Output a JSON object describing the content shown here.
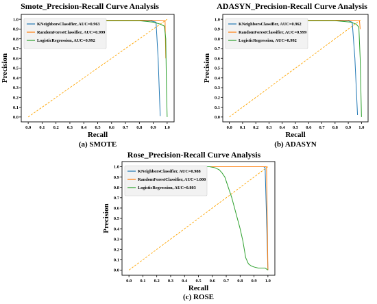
{
  "chart_data": [
    {
      "id": "smote",
      "type": "line",
      "title": "Smote_Precision-Recall Curve Analysis",
      "xlabel": "Recall",
      "ylabel": "Precision",
      "caption": "(a) SMOTE",
      "xlim": [
        0,
        1.0
      ],
      "ylim": [
        0,
        1.0
      ],
      "xticks": [
        "0.0",
        "0.1",
        "0.2",
        "0.3",
        "0.4",
        "0.5",
        "0.6",
        "0.7",
        "0.8",
        "0.9",
        "1.0"
      ],
      "yticks": [
        "0.0",
        "0.1",
        "0.2",
        "0.3",
        "0.4",
        "0.5",
        "0.6",
        "0.7",
        "0.8",
        "0.9",
        "1.0"
      ],
      "legend_position": "top-left",
      "grid": false,
      "series": [
        {
          "name": "KNeighborsClassifier, AUC=0.963",
          "color": "#1f77b4",
          "x": [
            0.5,
            0.7,
            0.88,
            0.92,
            0.935,
            0.95
          ],
          "y": [
            0.99,
            0.99,
            0.985,
            0.97,
            0.6,
            0.01
          ]
        },
        {
          "name": "RandomForestClassifier, AUC=0.999",
          "color": "#ff7f0e",
          "x": [
            0.5,
            0.8,
            0.95,
            0.985,
            0.99
          ],
          "y": [
            0.99,
            0.99,
            0.99,
            0.985,
            0.6
          ]
        },
        {
          "name": "LogisticRegression, AUC=0.992",
          "color": "#2ca02c",
          "x": [
            0.5,
            0.8,
            0.9,
            0.95,
            0.98,
            0.99,
            0.995,
            1.0
          ],
          "y": [
            0.985,
            0.985,
            0.97,
            0.95,
            0.93,
            0.8,
            0.3,
            0.0
          ]
        },
        {
          "name": "",
          "color": "#ffa500",
          "dashed": true,
          "x": [
            0.0,
            1.0
          ],
          "y": [
            0.0,
            1.0
          ]
        }
      ]
    },
    {
      "id": "adasyn",
      "type": "line",
      "title": "ADASYN_Precision-Recall Curve Analysis",
      "xlabel": "Recall",
      "ylabel": "Precision",
      "caption": "(b) ADASYN",
      "xlim": [
        0,
        1.0
      ],
      "ylim": [
        0,
        1.0
      ],
      "xticks": [
        "0.0",
        "0.1",
        "0.2",
        "0.3",
        "0.4",
        "0.5",
        "0.6",
        "0.7",
        "0.8",
        "0.9",
        "1.0"
      ],
      "yticks": [
        "0.0",
        "0.1",
        "0.2",
        "0.3",
        "0.4",
        "0.5",
        "0.6",
        "0.7",
        "0.8",
        "0.9",
        "1.0"
      ],
      "legend_position": "top-left",
      "grid": false,
      "series": [
        {
          "name": "KNeighborsClassifier, AUC=0.962",
          "color": "#1f77b4",
          "x": [
            0.5,
            0.7,
            0.9,
            0.93,
            0.95,
            0.97
          ],
          "y": [
            0.99,
            0.99,
            0.985,
            0.97,
            0.6,
            0.02
          ]
        },
        {
          "name": "RandomForestClassifier, AUC=0.999",
          "color": "#ff7f0e",
          "x": [
            0.5,
            0.8,
            0.95,
            0.985,
            0.99
          ],
          "y": [
            0.99,
            0.99,
            0.99,
            0.985,
            0.9
          ]
        },
        {
          "name": "LogisticRegression, AUC=0.992",
          "color": "#2ca02c",
          "x": [
            0.5,
            0.8,
            0.92,
            0.96,
            0.98,
            0.99,
            0.995,
            1.0
          ],
          "y": [
            0.985,
            0.985,
            0.97,
            0.95,
            0.92,
            0.6,
            0.3,
            0.0
          ]
        },
        {
          "name": "",
          "color": "#ffa500",
          "dashed": true,
          "x": [
            0.0,
            1.0
          ],
          "y": [
            0.0,
            1.0
          ]
        }
      ]
    },
    {
      "id": "rose",
      "type": "line",
      "title": "Rose_Precision-Recall Curve Analysis",
      "xlabel": "Recall",
      "ylabel": "Precision",
      "caption": "(c) ROSE",
      "xlim": [
        0,
        1.0
      ],
      "ylim": [
        0,
        1.0
      ],
      "xticks": [
        "0.0",
        "0.1",
        "0.2",
        "0.3",
        "0.4",
        "0.5",
        "0.6",
        "0.7",
        "0.8",
        "0.9",
        "1.0"
      ],
      "yticks": [
        "0.0",
        "0.1",
        "0.2",
        "0.3",
        "0.4",
        "0.5",
        "0.6",
        "0.7",
        "0.8",
        "0.9",
        "1.0"
      ],
      "legend_position": "top-left",
      "grid": false,
      "series": [
        {
          "name": "KNeighborsClassifier, AUC=0.988",
          "color": "#1f77b4",
          "x": [
            0.5,
            0.8,
            0.97,
            0.98,
            0.99,
            1.0
          ],
          "y": [
            1.0,
            1.0,
            1.0,
            0.99,
            0.5,
            0.0
          ]
        },
        {
          "name": "RandomForestClassifier, AUC=1.000",
          "color": "#ff7f0e",
          "x": [
            0.5,
            0.8,
            0.97,
            0.99,
            1.0
          ],
          "y": [
            1.0,
            1.0,
            1.0,
            1.0,
            0.0
          ]
        },
        {
          "name": "LogisticRegression, AUC=0.803",
          "color": "#2ca02c",
          "x": [
            0.5,
            0.58,
            0.62,
            0.65,
            0.67,
            0.69,
            0.7,
            0.71,
            0.72,
            0.73,
            0.74,
            0.75,
            0.76,
            0.77,
            0.78,
            0.79,
            0.8,
            0.81,
            0.82,
            0.83,
            0.84,
            0.86,
            0.88,
            0.9,
            0.93,
            0.97,
            0.98,
            0.99,
            1.0
          ],
          "y": [
            1.0,
            1.0,
            0.99,
            0.97,
            0.94,
            0.9,
            0.86,
            0.82,
            0.78,
            0.74,
            0.7,
            0.65,
            0.6,
            0.55,
            0.5,
            0.45,
            0.4,
            0.34,
            0.28,
            0.2,
            0.12,
            0.06,
            0.04,
            0.03,
            0.02,
            0.02,
            0.02,
            0.01,
            0.0
          ]
        },
        {
          "name": "",
          "color": "#ffa500",
          "dashed": true,
          "x": [
            0.0,
            1.0
          ],
          "y": [
            0.0,
            1.0
          ]
        }
      ]
    }
  ]
}
